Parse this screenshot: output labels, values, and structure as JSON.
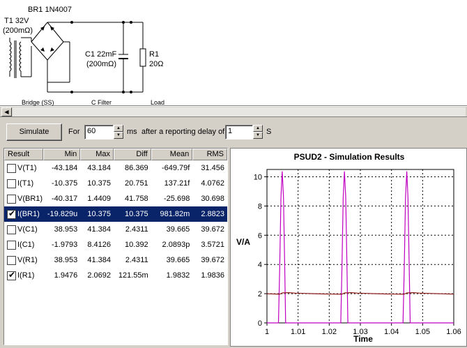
{
  "schematic": {
    "bridge_name": "BR1 1N4007",
    "transformer": {
      "name": "T1 32V",
      "resistance": "(200mΩ)"
    },
    "capacitor": {
      "name": "C1 22mF",
      "resistance": "(200mΩ)"
    },
    "resistor": {
      "name": "R1",
      "value": "20Ω"
    },
    "section_labels": [
      "Bridge (SS)",
      "C Filter",
      "Load"
    ]
  },
  "controls": {
    "simulate_label": "Simulate",
    "for_label": "For",
    "duration_value": "60",
    "ms_label": "ms",
    "delay_label": "after a reporting delay of",
    "delay_value": "1",
    "s_label": "S"
  },
  "results": {
    "headers": [
      "Result",
      "Min",
      "Max",
      "Diff",
      "Mean",
      "RMS"
    ],
    "rows": [
      {
        "name": "V(T1)",
        "checked": false,
        "selected": false,
        "min": "-43.184",
        "max": "43.184",
        "diff": "86.369",
        "mean": "-649.79f",
        "rms": "31.456"
      },
      {
        "name": "I(T1)",
        "checked": false,
        "selected": false,
        "min": "-10.375",
        "max": "10.375",
        "diff": "20.751",
        "mean": "137.21f",
        "rms": "4.0762"
      },
      {
        "name": "V(BR1)",
        "checked": false,
        "selected": false,
        "min": "-40.317",
        "max": "1.4409",
        "diff": "41.758",
        "mean": "-25.698",
        "rms": "30.698"
      },
      {
        "name": "I(BR1)",
        "checked": true,
        "selected": true,
        "min": "-19.829u",
        "max": "10.375",
        "diff": "10.375",
        "mean": "981.82m",
        "rms": "2.8823"
      },
      {
        "name": "V(C1)",
        "checked": false,
        "selected": false,
        "min": "38.953",
        "max": "41.384",
        "diff": "2.4311",
        "mean": "39.665",
        "rms": "39.672"
      },
      {
        "name": "I(C1)",
        "checked": false,
        "selected": false,
        "min": "-1.9793",
        "max": "8.4126",
        "diff": "10.392",
        "mean": "2.0893p",
        "rms": "3.5721"
      },
      {
        "name": "V(R1)",
        "checked": false,
        "selected": false,
        "min": "38.953",
        "max": "41.384",
        "diff": "2.4311",
        "mean": "39.665",
        "rms": "39.672"
      },
      {
        "name": "I(R1)",
        "checked": true,
        "selected": false,
        "min": "1.9476",
        "max": "2.0692",
        "diff": "121.55m",
        "mean": "1.9832",
        "rms": "1.9836"
      }
    ]
  },
  "chart_data": {
    "type": "line",
    "title": "PSUD2 - Simulation Results",
    "xlabel": "Time",
    "ylabel": "V/A",
    "xlim": [
      1.0,
      1.06
    ],
    "ylim": [
      0,
      10.5
    ],
    "x_ticks": [
      "1",
      "1.01",
      "1.02",
      "1.03",
      "1.04",
      "1.05",
      "1.06"
    ],
    "y_ticks": [
      "0",
      "2",
      "4",
      "6",
      "8",
      "10"
    ],
    "grid": true,
    "series": [
      {
        "color": "#c000c0",
        "x": [
          1.0,
          1.0037,
          1.0041,
          1.0045,
          1.0049,
          1.0053,
          1.0057,
          1.006,
          1.0237,
          1.0241,
          1.0245,
          1.0249,
          1.0253,
          1.0257,
          1.026,
          1.0437,
          1.0441,
          1.0445,
          1.0449,
          1.0453,
          1.0457,
          1.046,
          1.06
        ],
        "y": [
          0,
          0,
          3.8,
          8.6,
          10.375,
          8.6,
          3.8,
          0,
          0,
          3.8,
          8.6,
          10.375,
          8.6,
          3.8,
          0,
          0,
          3.8,
          8.6,
          10.375,
          8.6,
          3.8,
          0,
          0
        ]
      },
      {
        "color": "#8b1a1a",
        "x": [
          1.0,
          1.002,
          1.004,
          1.005,
          1.007,
          1.009,
          1.012,
          1.015,
          1.018,
          1.021,
          1.024,
          1.025,
          1.027,
          1.029,
          1.032,
          1.035,
          1.038,
          1.041,
          1.044,
          1.045,
          1.047,
          1.049,
          1.052,
          1.055,
          1.058,
          1.06
        ],
        "y": [
          1.99,
          1.98,
          1.96,
          2.05,
          2.07,
          2.04,
          2.02,
          2.0,
          1.98,
          1.97,
          1.96,
          2.05,
          2.07,
          2.04,
          2.02,
          2.0,
          1.98,
          1.97,
          1.96,
          2.05,
          2.07,
          2.04,
          2.02,
          2.0,
          1.98,
          1.97
        ]
      }
    ]
  }
}
